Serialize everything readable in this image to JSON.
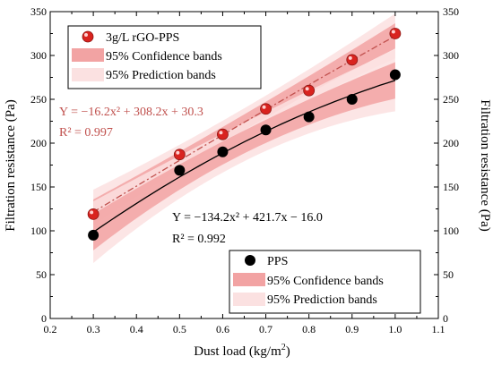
{
  "chart_data": {
    "type": "scatter",
    "xlabel": "Dust load (kg/m",
    "xlabel_sup": "2",
    "xlabel_end": ")",
    "ylabel": "Filtration resistance (Pa)",
    "ylabel_right": "Filtration resistance (Pa)",
    "xlim": [
      0.2,
      1.1
    ],
    "ylim": [
      0,
      350
    ],
    "xticks": [
      "0.2",
      "0.3",
      "0.4",
      "0.5",
      "0.6",
      "0.7",
      "0.8",
      "0.9",
      "1.0",
      "1.1"
    ],
    "yticks": [
      "0",
      "50",
      "100",
      "150",
      "200",
      "250",
      "300",
      "350"
    ],
    "grid": false,
    "series": [
      {
        "name": "3g/L rGO-PPS",
        "color": "#d9231f",
        "fit_color": "#c0504d",
        "fit": {
          "a": -16.2,
          "b": 308.2,
          "c": 30.3
        },
        "x": [
          0.3,
          0.5,
          0.6,
          0.7,
          0.8,
          0.9,
          1.0
        ],
        "y": [
          119,
          187,
          210,
          239,
          260,
          295,
          325
        ],
        "conf_half": 9,
        "pred_half": 16,
        "legend": [
          "3g/L rGO-PPS",
          "95% Confidence bands",
          "95% Prediction bands"
        ],
        "equation": "Y = −16.2x² + 308.2x + 30.3",
        "r2": "R² = 0.997"
      },
      {
        "name": "PPS",
        "color": "#000000",
        "fit_color": "#000000",
        "fit": {
          "a": -134.2,
          "b": 421.7,
          "c": -16.0
        },
        "x": [
          0.3,
          0.5,
          0.6,
          0.7,
          0.8,
          0.9,
          1.0
        ],
        "y": [
          95,
          169,
          190,
          215,
          230,
          250,
          278
        ],
        "conf_half": 13,
        "pred_half": 22,
        "legend": [
          "PPS",
          "95% Confidence bands",
          "95% Prediction bands"
        ],
        "equation": "Y = −134.2x² + 421.7x − 16.0",
        "r2": "R² = 0.992"
      }
    ]
  },
  "colors": {
    "conf_band": "#f2a3a3",
    "pred_band": "#fbe1e1"
  }
}
